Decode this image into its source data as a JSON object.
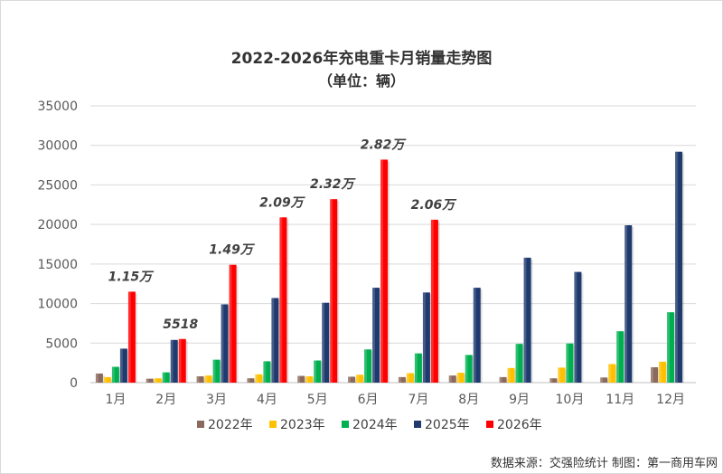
{
  "chart_data": {
    "type": "bar",
    "title": "2022-2026年充电重卡月销量走势图",
    "subtitle": "（单位：辆）",
    "categories": [
      "1月",
      "2月",
      "3月",
      "4月",
      "5月",
      "6月",
      "7月",
      "8月",
      "9月",
      "10月",
      "11月",
      "12月"
    ],
    "series": [
      {
        "name": "2022年",
        "color": "#8B6A5E",
        "values": [
          1150,
          500,
          800,
          550,
          850,
          750,
          700,
          900,
          700,
          550,
          650,
          1950
        ]
      },
      {
        "name": "2023年",
        "color": "#FFC000",
        "values": [
          700,
          550,
          900,
          1050,
          800,
          1000,
          1200,
          1250,
          1850,
          1900,
          2350,
          2650
        ]
      },
      {
        "name": "2024年",
        "color": "#00B050",
        "values": [
          2000,
          1300,
          2900,
          2700,
          2800,
          4200,
          3700,
          3500,
          4900,
          4950,
          6500,
          8900
        ]
      },
      {
        "name": "2025年",
        "color": "#1F3A6E",
        "values": [
          4300,
          5400,
          9900,
          10700,
          10100,
          12000,
          11400,
          12000,
          15800,
          14000,
          19900,
          29200
        ]
      },
      {
        "name": "2026年",
        "color": "#FF0000",
        "values": [
          11500,
          5518,
          14900,
          20900,
          23200,
          28200,
          20600,
          null,
          null,
          null,
          null,
          null
        ]
      }
    ],
    "data_labels": [
      "1.15万",
      "5518",
      "1.49万",
      "2.09万",
      "2.32万",
      "2.82万",
      "2.06万"
    ],
    "yticks": [
      "0",
      "5000",
      "10000",
      "15000",
      "20000",
      "25000",
      "30000",
      "35000"
    ],
    "ylim": [
      0,
      35000
    ],
    "grid": true,
    "legend_position": "bottom",
    "source": "数据来源：交强险统计 制图：第一商用车网"
  }
}
